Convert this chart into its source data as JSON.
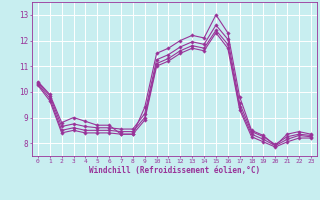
{
  "xlabel": "Windchill (Refroidissement éolien,°C)",
  "background_color": "#c8eef0",
  "grid_color": "#ffffff",
  "line_color": "#993399",
  "x_ticks": [
    0,
    1,
    2,
    3,
    4,
    5,
    6,
    7,
    8,
    9,
    10,
    11,
    12,
    13,
    14,
    15,
    16,
    17,
    18,
    19,
    20,
    21,
    22,
    23
  ],
  "ylim": [
    7.5,
    13.5
  ],
  "yticks": [
    8,
    9,
    10,
    11,
    12,
    13
  ],
  "series": [
    {
      "x": [
        0,
        1,
        2,
        3,
        4,
        5,
        6,
        7,
        8,
        9,
        10,
        11,
        12,
        13,
        14,
        15,
        16,
        17,
        18,
        19,
        20,
        21,
        22,
        23
      ],
      "y": [
        10.4,
        9.9,
        8.8,
        9.0,
        8.85,
        8.7,
        8.7,
        8.35,
        8.35,
        9.4,
        11.5,
        11.7,
        12.0,
        12.2,
        12.1,
        13.0,
        12.3,
        9.8,
        8.5,
        8.3,
        7.9,
        8.35,
        8.45,
        8.35
      ]
    },
    {
      "x": [
        0,
        1,
        2,
        3,
        4,
        5,
        6,
        7,
        8,
        9,
        10,
        11,
        12,
        13,
        14,
        15,
        16,
        17,
        18,
        19,
        20,
        21,
        22,
        23
      ],
      "y": [
        10.35,
        9.85,
        8.65,
        8.75,
        8.65,
        8.6,
        8.6,
        8.55,
        8.55,
        9.15,
        11.25,
        11.45,
        11.75,
        11.95,
        11.85,
        12.6,
        12.05,
        9.55,
        8.45,
        8.25,
        7.95,
        8.25,
        8.35,
        8.3
      ]
    },
    {
      "x": [
        0,
        1,
        2,
        3,
        4,
        5,
        6,
        7,
        8,
        9,
        10,
        11,
        12,
        13,
        14,
        15,
        16,
        17,
        18,
        19,
        20,
        21,
        22,
        23
      ],
      "y": [
        10.3,
        9.75,
        8.5,
        8.6,
        8.5,
        8.5,
        8.5,
        8.45,
        8.45,
        9.0,
        11.1,
        11.3,
        11.6,
        11.8,
        11.7,
        12.4,
        11.85,
        9.4,
        8.35,
        8.15,
        7.9,
        8.15,
        8.3,
        8.25
      ]
    },
    {
      "x": [
        0,
        1,
        2,
        3,
        4,
        5,
        6,
        7,
        8,
        9,
        10,
        11,
        12,
        13,
        14,
        15,
        16,
        17,
        18,
        19,
        20,
        21,
        22,
        23
      ],
      "y": [
        10.25,
        9.65,
        8.4,
        8.5,
        8.4,
        8.4,
        8.4,
        8.35,
        8.35,
        8.9,
        11.0,
        11.2,
        11.5,
        11.7,
        11.6,
        12.3,
        11.7,
        9.3,
        8.25,
        8.05,
        7.85,
        8.05,
        8.2,
        8.2
      ]
    }
  ]
}
